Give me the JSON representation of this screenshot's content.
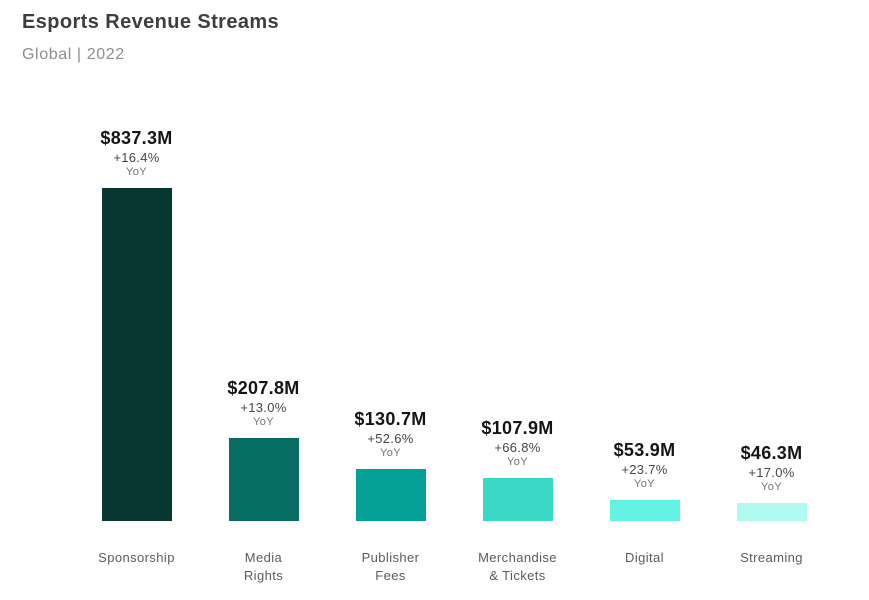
{
  "header": {
    "title": "Esports Revenue Streams",
    "subtitle": "Global | 2022"
  },
  "chart_data": {
    "type": "bar",
    "title": "Esports Revenue Streams",
    "subtitle": "Global | 2022",
    "unit": "USD millions",
    "categories": [
      "Sponsorship",
      "Media Rights",
      "Publisher Fees",
      "Merchandise & Tickets",
      "Digital",
      "Streaming"
    ],
    "category_lines": [
      [
        "Sponsorship"
      ],
      [
        "Media",
        "Rights"
      ],
      [
        "Publisher",
        "Fees"
      ],
      [
        "Merchandise",
        "& Tickets"
      ],
      [
        "Digital"
      ],
      [
        "Streaming"
      ]
    ],
    "values": [
      837.3,
      207.8,
      130.7,
      107.9,
      53.9,
      46.3
    ],
    "value_labels": [
      "$837.3M",
      "$207.8M",
      "$130.7M",
      "$107.9M",
      "$53.9M",
      "$46.3M"
    ],
    "yoy_changes": [
      "+16.4%",
      "+13.0%",
      "+52.6%",
      "+66.8%",
      "+23.7%",
      "+17.0%"
    ],
    "yoy_unit": "YoY",
    "bar_colors": [
      "#093832",
      "#076d64",
      "#05a096",
      "#3cd8c6",
      "#63f2e4",
      "#b0faf0"
    ],
    "ylim": [
      0,
      880
    ],
    "grid": false,
    "legend": "none",
    "orientation": "vertical"
  },
  "layout_colors": {
    "background": "#ffffff",
    "title_text": "#3e3e3e",
    "subtitle_text": "#8e8e8e",
    "value_text": "#151515",
    "change_text": "#474747",
    "yoy_text": "#757575",
    "category_text": "#5c5c5c"
  }
}
